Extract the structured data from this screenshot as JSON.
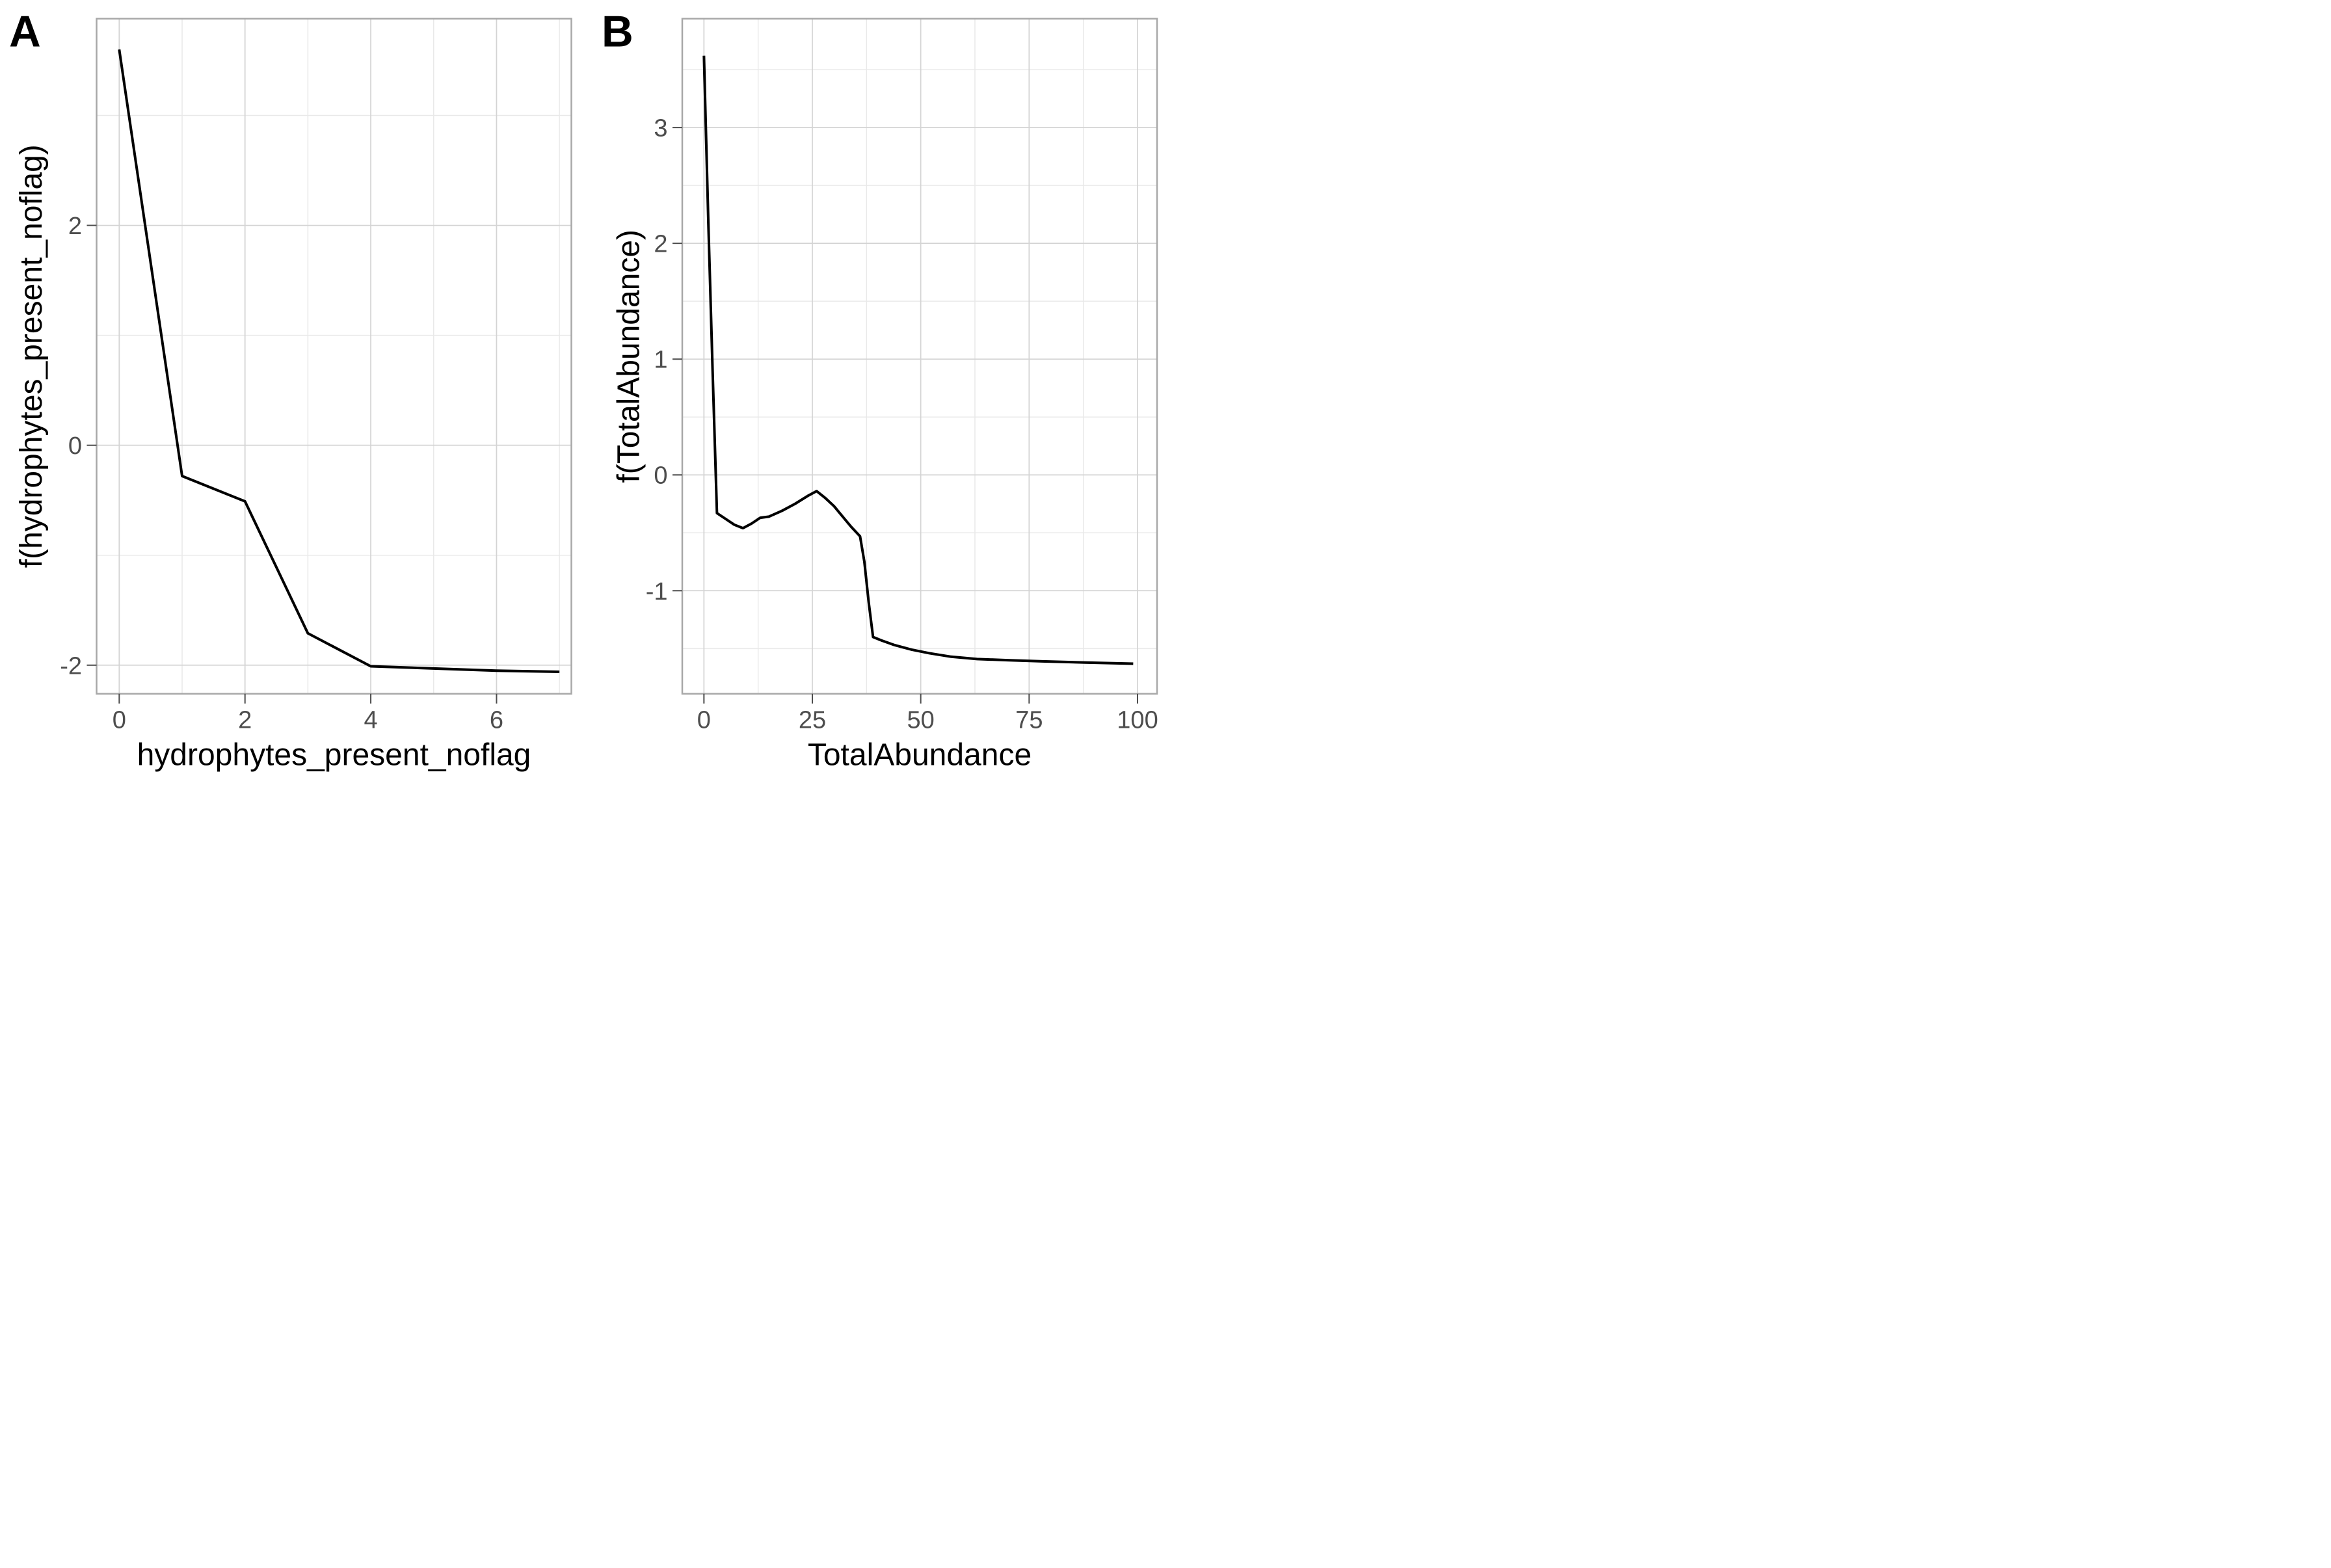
{
  "figure": {
    "background": "#ffffff",
    "panel_border_color": "#a8a8a8",
    "grid_major_color": "#d4d4d4",
    "grid_minor_color": "#e9e9e9",
    "curve_color": "#000000",
    "tick_mark_color": "#4d4d4d",
    "tick_label_color": "#4d4d4d",
    "axis_title_color": "#000000"
  },
  "chart_data": [
    {
      "type": "line",
      "panel_label": "A",
      "xlabel": "hydrophytes_present_noflag",
      "ylabel": "f(hydrophytes_present_noflag)",
      "legend": "none",
      "grid": "on",
      "xlim": [
        -0.36,
        7.19
      ],
      "ylim": [
        -2.26,
        3.88
      ],
      "x_ticks": [
        0,
        2,
        4,
        6
      ],
      "x_minor_ticks": [
        1,
        3,
        5,
        7
      ],
      "y_ticks": [
        -2,
        0,
        2
      ],
      "y_minor_ticks": [
        -1,
        1,
        3
      ],
      "x": [
        0,
        1,
        2,
        3,
        4,
        5,
        6,
        7
      ],
      "y": [
        3.6,
        -0.28,
        -0.51,
        -1.71,
        -2.01,
        -2.03,
        -2.05,
        -2.06
      ]
    },
    {
      "type": "line",
      "panel_label": "B",
      "xlabel": "TotalAbundance",
      "ylabel": "f(TotalAbundance)",
      "legend": "none",
      "grid": "on",
      "xlim": [
        -5.0,
        104.5
      ],
      "ylim": [
        -1.89,
        3.94
      ],
      "x_ticks": [
        0,
        25,
        50,
        75,
        100
      ],
      "x_minor_ticks": [
        12.5,
        37.5,
        62.5,
        87.5
      ],
      "y_ticks": [
        -1,
        0,
        1,
        2,
        3
      ],
      "y_minor_ticks": [
        -1.5,
        -0.5,
        0.5,
        1.5,
        2.5,
        3.5
      ],
      "x": [
        0,
        1,
        2,
        3,
        5,
        7,
        9,
        11,
        13,
        15,
        18,
        21,
        24,
        26,
        28,
        30,
        32,
        34,
        36,
        37,
        38,
        39,
        41,
        44,
        48,
        52,
        57,
        63,
        70,
        78,
        88,
        99
      ],
      "y": [
        3.62,
        2.2,
        0.9,
        -0.33,
        -0.38,
        -0.43,
        -0.46,
        -0.42,
        -0.37,
        -0.36,
        -0.31,
        -0.25,
        -0.18,
        -0.14,
        -0.2,
        -0.27,
        -0.36,
        -0.45,
        -0.53,
        -0.75,
        -1.1,
        -1.4,
        -1.43,
        -1.47,
        -1.51,
        -1.54,
        -1.57,
        -1.59,
        -1.6,
        -1.61,
        -1.62,
        -1.63
      ]
    }
  ]
}
